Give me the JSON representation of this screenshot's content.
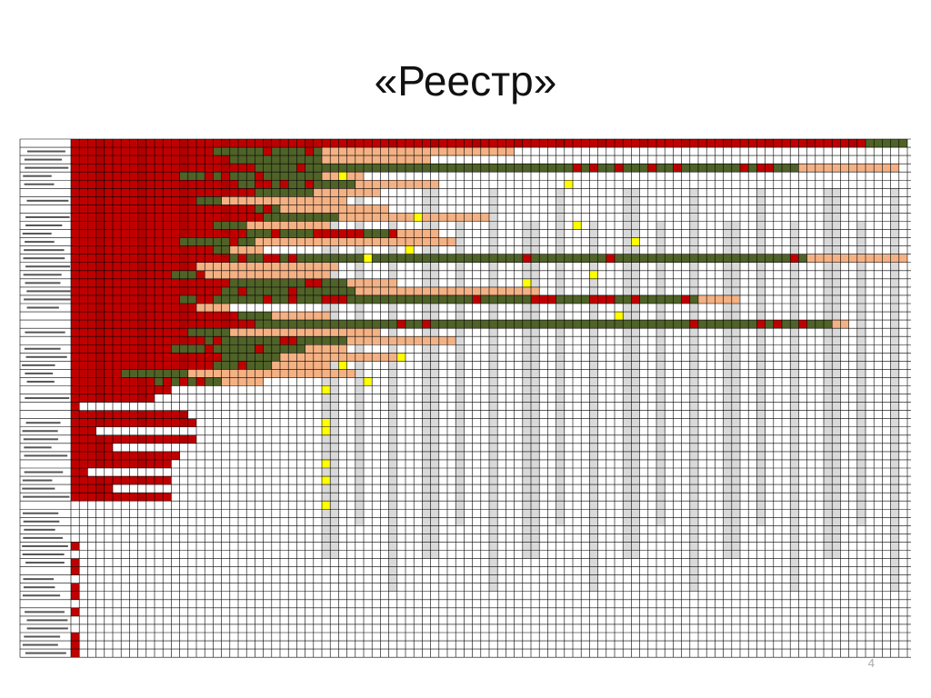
{
  "slide": {
    "title": "«Реестр»",
    "page_number": "4"
  }
}
